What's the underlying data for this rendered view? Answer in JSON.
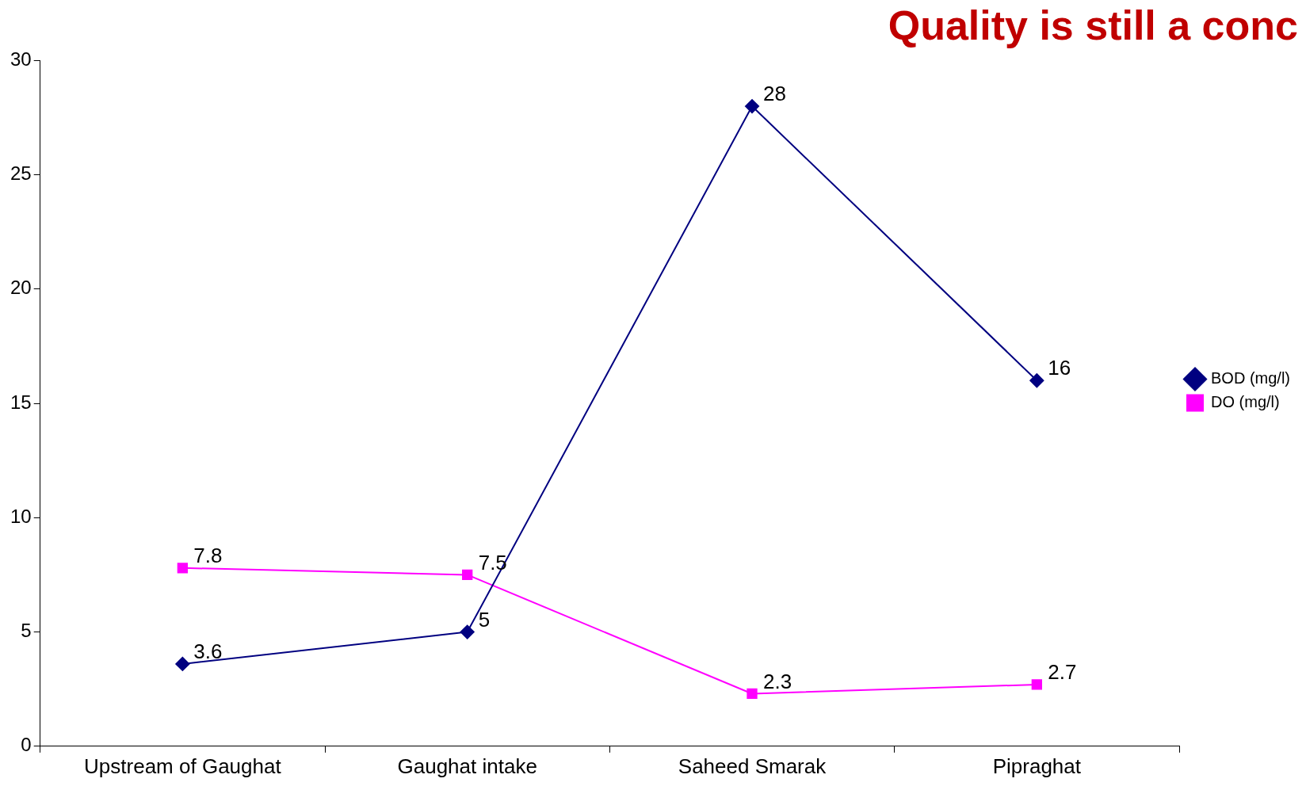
{
  "chart_data": {
    "type": "line",
    "title": "Quality is still a conc",
    "categories": [
      "Upstream of Gaughat",
      "Gaughat intake",
      "Saheed Smarak",
      "Pipraghat"
    ],
    "series": [
      {
        "name": "BOD (mg/l)",
        "color": "#000080",
        "marker": "diamond",
        "values": [
          3.6,
          5,
          28,
          16
        ]
      },
      {
        "name": "DO (mg/l)",
        "color": "#ff00ff",
        "marker": "square",
        "values": [
          7.8,
          7.5,
          2.3,
          2.7
        ]
      }
    ],
    "ylim": [
      0,
      30
    ],
    "yticks": [
      0,
      5,
      10,
      15,
      20,
      25,
      30
    ],
    "grid": false,
    "legend": "right",
    "data_labels": true,
    "line_style": "solid"
  }
}
